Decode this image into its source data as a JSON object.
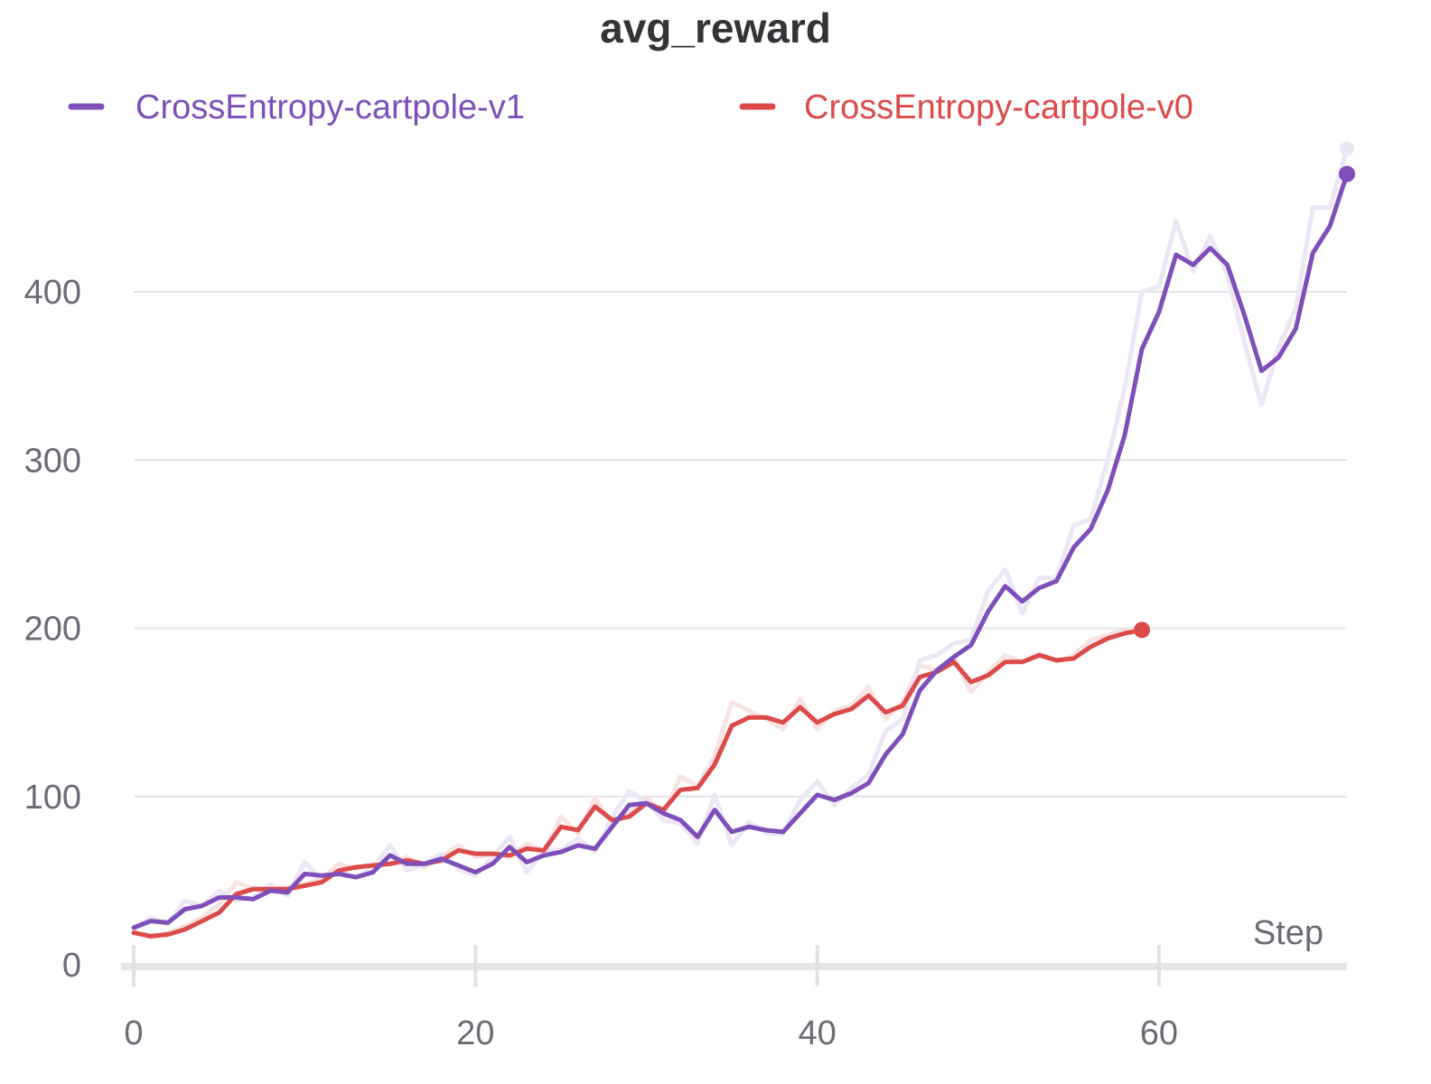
{
  "chart_data": {
    "type": "line",
    "title": "avg_reward",
    "xlabel": "Step",
    "ylabel": "",
    "xlim": [
      0,
      71
    ],
    "ylim": [
      0,
      480
    ],
    "x_ticks": [
      "0",
      "20",
      "40",
      "60"
    ],
    "y_ticks": [
      "0",
      "100",
      "200",
      "300",
      "400"
    ],
    "grid": "horizontal",
    "legend_position": "top",
    "series": [
      {
        "name": "CrossEntropy-cartpole-v1",
        "color": "#7e4fb8",
        "raw_color": "#ece6f5",
        "x_start": 0,
        "smoothed": [
          22,
          26,
          25,
          33,
          35,
          40,
          40,
          39,
          44,
          43,
          54,
          53,
          54,
          52,
          55,
          65,
          60,
          60,
          63,
          59,
          55,
          60,
          70,
          61,
          65,
          67,
          71,
          69,
          82,
          95,
          96,
          90,
          86,
          76,
          92,
          79,
          82,
          80,
          79,
          90,
          101,
          98,
          102,
          108,
          125,
          137,
          163,
          175,
          183,
          190,
          210,
          225,
          216,
          224,
          228,
          248,
          259,
          282,
          315,
          366,
          388,
          422,
          416,
          426,
          416,
          386,
          353,
          361,
          378,
          423,
          439,
          470
        ],
        "raw": [
          22,
          28,
          24,
          38,
          35,
          44,
          38,
          40,
          48,
          41,
          61,
          50,
          55,
          52,
          57,
          71,
          56,
          60,
          66,
          57,
          53,
          64,
          76,
          55,
          68,
          68,
          75,
          67,
          88,
          103,
          97,
          86,
          84,
          72,
          101,
          71,
          85,
          78,
          78,
          98,
          109,
          95,
          105,
          113,
          139,
          146,
          181,
          184,
          191,
          193,
          222,
          235,
          209,
          230,
          230,
          261,
          265,
          300,
          343,
          400,
          403,
          442,
          412,
          433,
          410,
          370,
          333,
          367,
          390,
          450,
          450,
          485
        ]
      },
      {
        "name": "CrossEntropy-cartpole-v0",
        "color": "#dc4a4a",
        "raw_color": "#f8e3e3",
        "x_start": 0,
        "smoothed": [
          19,
          17,
          18,
          21,
          26,
          31,
          42,
          45,
          45,
          45,
          47,
          49,
          56,
          58,
          59,
          60,
          62,
          60,
          62,
          68,
          66,
          66,
          65,
          69,
          68,
          82,
          80,
          94,
          86,
          88,
          96,
          92,
          104,
          105,
          119,
          142,
          147,
          147,
          144,
          153,
          144,
          149,
          152,
          160,
          150,
          154,
          171,
          174,
          180,
          168,
          172,
          180,
          180,
          184,
          181,
          182,
          189,
          194,
          197,
          199
        ],
        "raw": [
          20,
          16,
          19,
          23,
          28,
          36,
          49,
          45,
          46,
          46,
          48,
          51,
          60,
          57,
          60,
          60,
          64,
          58,
          64,
          71,
          64,
          66,
          64,
          72,
          67,
          88,
          78,
          99,
          83,
          90,
          100,
          89,
          112,
          106,
          124,
          156,
          151,
          146,
          140,
          158,
          140,
          151,
          154,
          165,
          146,
          156,
          178,
          175,
          182,
          162,
          174,
          184,
          180,
          185,
          180,
          184,
          193,
          196,
          199,
          200
        ]
      }
    ]
  }
}
